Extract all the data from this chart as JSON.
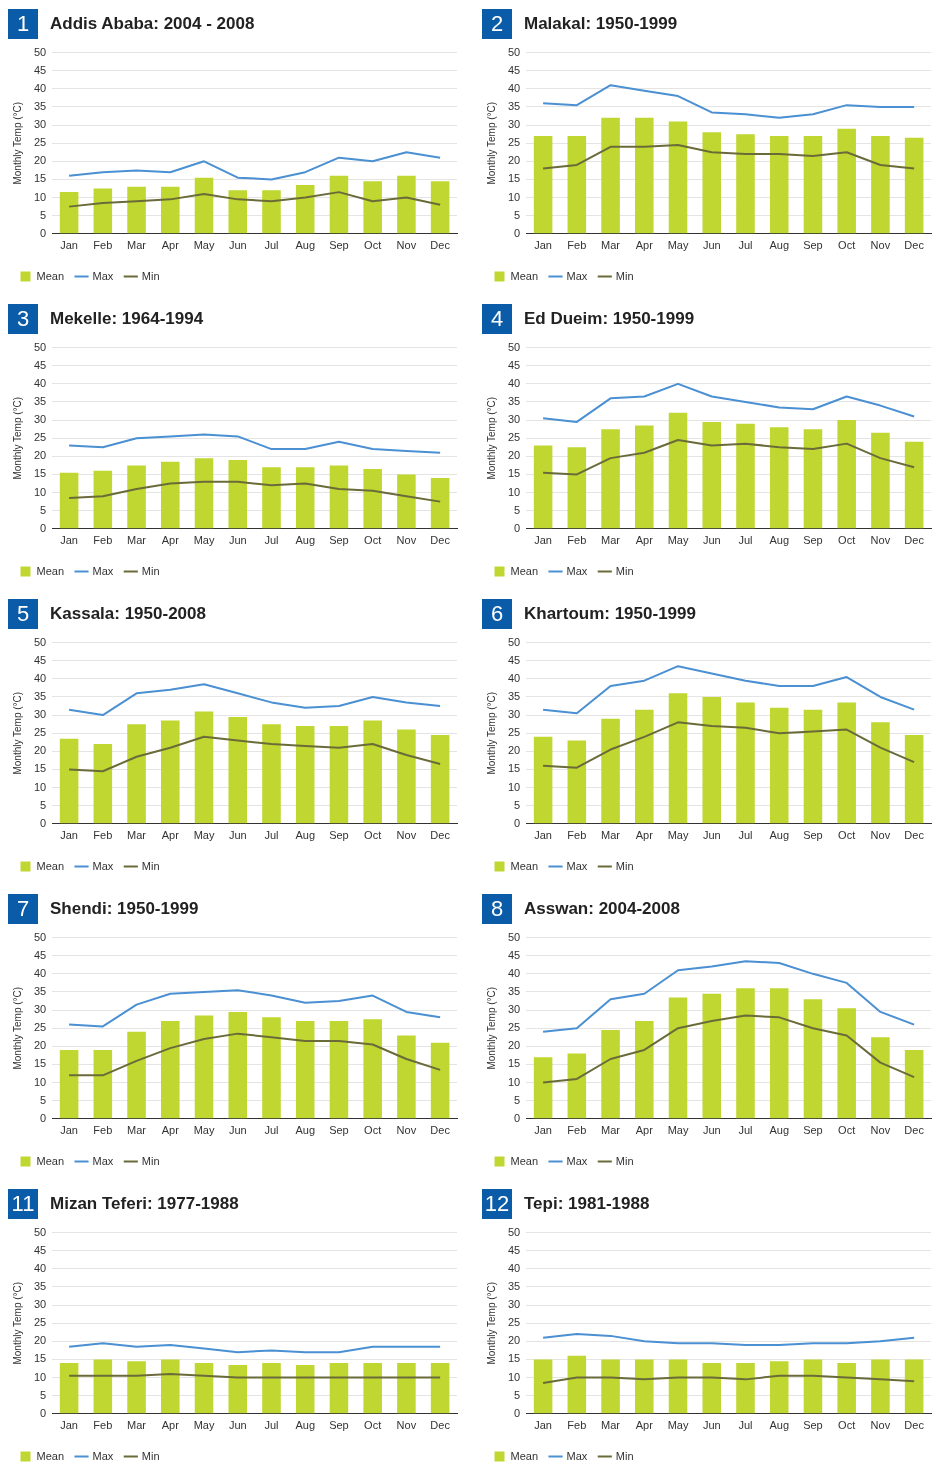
{
  "chart_data": [
    {
      "type": "bar",
      "annotations": [
        "1"
      ],
      "title": "Addis Ababa: 2004 - 2008",
      "ylabel": "Monthly Temp (°C)",
      "categories": [
        "Jan",
        "Feb",
        "Mar",
        "Apr",
        "May",
        "Jun",
        "Jul",
        "Aug",
        "Sep",
        "Oct",
        "Nov",
        "Dec"
      ],
      "ylim": [
        0,
        50
      ],
      "yticks": [
        0,
        5,
        10,
        15,
        20,
        25,
        30,
        35,
        40,
        45,
        50
      ],
      "grid": "y",
      "legend": "bottom left",
      "marker": "none",
      "series": [
        {
          "name": "Mean",
          "color": "#bfd730",
          "values": [
            11.5,
            12.5,
            13,
            13,
            15.5,
            12,
            12,
            13.5,
            16,
            14.5,
            16,
            14.5
          ]
        },
        {
          "name": "Max",
          "type": "line",
          "color": "#4a90d2",
          "values": [
            16,
            17,
            17.5,
            17,
            20,
            15.5,
            15,
            17,
            21,
            20,
            22.5,
            21
          ]
        },
        {
          "name": "Min",
          "type": "line",
          "color": "#6b6b3a",
          "values": [
            7.5,
            8.5,
            9,
            9.5,
            11,
            9.5,
            9,
            10,
            11.5,
            9,
            10,
            8
          ]
        }
      ]
    },
    {
      "type": "bar",
      "annotations": [
        "2"
      ],
      "title": "Malakal: 1950-1999",
      "ylabel": "Monthly Temp (°C)",
      "categories": [
        "Jan",
        "Feb",
        "Mar",
        "Apr",
        "May",
        "Jun",
        "Jul",
        "Aug",
        "Sep",
        "Oct",
        "Nov",
        "Dec"
      ],
      "ylim": [
        0,
        50
      ],
      "yticks": [
        0,
        5,
        10,
        15,
        20,
        25,
        30,
        35,
        40,
        45,
        50
      ],
      "grid": "y",
      "legend": "bottom left",
      "marker": "none",
      "series": [
        {
          "name": "Mean",
          "color": "#bfd730",
          "values": [
            27,
            27,
            32,
            32,
            31,
            28,
            27.5,
            27,
            27,
            29,
            27,
            26.5
          ]
        },
        {
          "name": "Max",
          "type": "line",
          "color": "#4a90d2",
          "values": [
            36,
            35.5,
            41,
            39.5,
            38,
            33.5,
            33,
            32,
            33,
            35.5,
            35,
            35
          ]
        },
        {
          "name": "Min",
          "type": "line",
          "color": "#6b6b3a",
          "values": [
            18,
            19,
            24,
            24,
            24.5,
            22.5,
            22,
            22,
            21.5,
            22.5,
            19,
            18
          ]
        }
      ]
    },
    {
      "type": "bar",
      "annotations": [
        "3"
      ],
      "title": "Mekelle: 1964-1994",
      "ylabel": "Monthly Temp (°C)",
      "categories": [
        "Jan",
        "Feb",
        "Mar",
        "Apr",
        "May",
        "Jun",
        "Jul",
        "Aug",
        "Sep",
        "Oct",
        "Nov",
        "Dec"
      ],
      "ylim": [
        0,
        50
      ],
      "yticks": [
        0,
        5,
        10,
        15,
        20,
        25,
        30,
        35,
        40,
        45,
        50
      ],
      "grid": "y",
      "legend": "bottom left",
      "marker": "none",
      "series": [
        {
          "name": "Mean",
          "color": "#bfd730",
          "values": [
            15.5,
            16,
            17.5,
            18.5,
            19.5,
            19,
            17,
            17,
            17.5,
            16.5,
            15,
            14
          ]
        },
        {
          "name": "Max",
          "type": "line",
          "color": "#4a90d2",
          "values": [
            23,
            22.5,
            25,
            25.5,
            26,
            25.5,
            22,
            22,
            24,
            22,
            21.5,
            21
          ]
        },
        {
          "name": "Min",
          "type": "line",
          "color": "#6b6b3a",
          "values": [
            8.5,
            9,
            11,
            12.5,
            13,
            13,
            12,
            12.5,
            11,
            10.5,
            9,
            7.5
          ]
        }
      ]
    },
    {
      "type": "bar",
      "annotations": [
        "4"
      ],
      "title": "Ed Dueim: 1950-1999",
      "ylabel": "Monthly Temp (°C)",
      "categories": [
        "Jan",
        "Feb",
        "Mar",
        "Apr",
        "May",
        "Jun",
        "Jul",
        "Aug",
        "Sep",
        "Oct",
        "Nov",
        "Dec"
      ],
      "ylim": [
        0,
        50
      ],
      "yticks": [
        0,
        5,
        10,
        15,
        20,
        25,
        30,
        35,
        40,
        45,
        50
      ],
      "grid": "y",
      "legend": "bottom left",
      "marker": "none",
      "series": [
        {
          "name": "Mean",
          "color": "#bfd730",
          "values": [
            23,
            22.5,
            27.5,
            28.5,
            32,
            29.5,
            29,
            28,
            27.5,
            30,
            26.5,
            24
          ]
        },
        {
          "name": "Max",
          "type": "line",
          "color": "#4a90d2",
          "values": [
            30.5,
            29.5,
            36,
            36.5,
            40,
            36.5,
            35,
            33.5,
            33,
            36.5,
            34,
            31
          ]
        },
        {
          "name": "Min",
          "type": "line",
          "color": "#6b6b3a",
          "values": [
            15.5,
            15,
            19.5,
            21,
            24.5,
            23,
            23.5,
            22.5,
            22,
            23.5,
            19.5,
            17
          ]
        }
      ]
    },
    {
      "type": "bar",
      "annotations": [
        "5"
      ],
      "title": "Kassala: 1950-2008",
      "ylabel": "Monthly Temp (°C)",
      "categories": [
        "Jan",
        "Feb",
        "Mar",
        "Apr",
        "May",
        "Jun",
        "Jul",
        "Aug",
        "Sep",
        "Oct",
        "Nov",
        "Dec"
      ],
      "ylim": [
        0,
        50
      ],
      "yticks": [
        0,
        5,
        10,
        15,
        20,
        25,
        30,
        35,
        40,
        45,
        50
      ],
      "grid": "y",
      "legend": "bottom left",
      "marker": "none",
      "series": [
        {
          "name": "Mean",
          "color": "#bfd730",
          "values": [
            23.5,
            22,
            27.5,
            28.5,
            31,
            29.5,
            27.5,
            27,
            27,
            28.5,
            26,
            24.5
          ]
        },
        {
          "name": "Max",
          "type": "line",
          "color": "#4a90d2",
          "values": [
            31.5,
            30,
            36,
            37,
            38.5,
            36,
            33.5,
            32,
            32.5,
            35,
            33.5,
            32.5
          ]
        },
        {
          "name": "Min",
          "type": "line",
          "color": "#6b6b3a",
          "values": [
            15,
            14.5,
            18.5,
            21,
            24,
            23,
            22,
            21.5,
            21,
            22,
            19,
            16.5
          ]
        }
      ]
    },
    {
      "type": "bar",
      "annotations": [
        "6"
      ],
      "title": "Khartoum: 1950-1999",
      "ylabel": "Monthly Temp (°C)",
      "categories": [
        "Jan",
        "Feb",
        "Mar",
        "Apr",
        "May",
        "Jun",
        "Jul",
        "Aug",
        "Sep",
        "Oct",
        "Nov",
        "Dec"
      ],
      "ylim": [
        0,
        50
      ],
      "yticks": [
        0,
        5,
        10,
        15,
        20,
        25,
        30,
        35,
        40,
        45,
        50
      ],
      "grid": "y",
      "legend": "bottom left",
      "marker": "none",
      "series": [
        {
          "name": "Mean",
          "color": "#bfd730",
          "values": [
            24,
            23,
            29,
            31.5,
            36,
            35,
            33.5,
            32,
            31.5,
            33.5,
            28,
            24.5
          ]
        },
        {
          "name": "Max",
          "type": "line",
          "color": "#4a90d2",
          "values": [
            31.5,
            30.5,
            38,
            39.5,
            43.5,
            41.5,
            39.5,
            38,
            38,
            40.5,
            35,
            31.5
          ]
        },
        {
          "name": "Min",
          "type": "line",
          "color": "#6b6b3a",
          "values": [
            16,
            15.5,
            20.5,
            24,
            28,
            27,
            26.5,
            25,
            25.5,
            26,
            21,
            17
          ]
        }
      ]
    },
    {
      "type": "bar",
      "annotations": [
        "7"
      ],
      "title": "Shendi: 1950-1999",
      "ylabel": "Monthly Temp (°C)",
      "categories": [
        "Jan",
        "Feb",
        "Mar",
        "Apr",
        "May",
        "Jun",
        "Jul",
        "Aug",
        "Sep",
        "Oct",
        "Nov",
        "Dec"
      ],
      "ylim": [
        0,
        50
      ],
      "yticks": [
        0,
        5,
        10,
        15,
        20,
        25,
        30,
        35,
        40,
        45,
        50
      ],
      "grid": "y",
      "legend": "bottom left",
      "marker": "none",
      "series": [
        {
          "name": "Mean",
          "color": "#bfd730",
          "values": [
            19,
            19,
            24,
            27,
            28.5,
            29.5,
            28,
            27,
            27,
            27.5,
            23,
            21
          ]
        },
        {
          "name": "Max",
          "type": "line",
          "color": "#4a90d2",
          "values": [
            26,
            25.5,
            31.5,
            34.5,
            35,
            35.5,
            34,
            32,
            32.5,
            34,
            29.5,
            28
          ]
        },
        {
          "name": "Min",
          "type": "line",
          "color": "#6b6b3a",
          "values": [
            12,
            12,
            16,
            19.5,
            22,
            23.5,
            22.5,
            21.5,
            21.5,
            20.5,
            16.5,
            13.5
          ]
        }
      ]
    },
    {
      "type": "bar",
      "annotations": [
        "8"
      ],
      "title": "Asswan: 2004-2008",
      "ylabel": "Monthly Temp (°C)",
      "categories": [
        "Jan",
        "Feb",
        "Mar",
        "Apr",
        "May",
        "Jun",
        "Jul",
        "Aug",
        "Sep",
        "Oct",
        "Nov",
        "Dec"
      ],
      "ylim": [
        0,
        50
      ],
      "yticks": [
        0,
        5,
        10,
        15,
        20,
        25,
        30,
        35,
        40,
        45,
        50
      ],
      "grid": "y",
      "legend": "bottom left",
      "marker": "none",
      "series": [
        {
          "name": "Mean",
          "color": "#bfd730",
          "values": [
            17,
            18,
            24.5,
            27,
            33.5,
            34.5,
            36,
            36,
            33,
            30.5,
            22.5,
            19
          ]
        },
        {
          "name": "Max",
          "type": "line",
          "color": "#4a90d2",
          "values": [
            24,
            25,
            33,
            34.5,
            41,
            42,
            43.5,
            43,
            40,
            37.5,
            29.5,
            26
          ]
        },
        {
          "name": "Min",
          "type": "line",
          "color": "#6b6b3a",
          "values": [
            10,
            11,
            16.5,
            19,
            25,
            27,
            28.5,
            28,
            25,
            23,
            15.5,
            11.5
          ]
        }
      ]
    },
    {
      "type": "bar",
      "annotations": [
        "11"
      ],
      "title": "Mizan Teferi: 1977-1988",
      "ylabel": "Monthly Temp (°C)",
      "categories": [
        "Jan",
        "Feb",
        "Mar",
        "Apr",
        "May",
        "Jun",
        "Jul",
        "Aug",
        "Sep",
        "Oct",
        "Nov",
        "Dec"
      ],
      "ylim": [
        0,
        50
      ],
      "yticks": [
        0,
        5,
        10,
        15,
        20,
        25,
        30,
        35,
        40,
        45,
        50
      ],
      "grid": "y",
      "legend": "bottom left",
      "marker": "none",
      "series": [
        {
          "name": "Mean",
          "color": "#bfd730",
          "values": [
            14,
            15,
            14.5,
            15,
            14,
            13.5,
            14,
            13.5,
            14,
            14,
            14,
            14
          ]
        },
        {
          "name": "Max",
          "type": "line",
          "color": "#4a90d2",
          "values": [
            18.5,
            19.5,
            18.5,
            19,
            18,
            17,
            17.5,
            17,
            17,
            18.5,
            18.5,
            18.5
          ]
        },
        {
          "name": "Min",
          "type": "line",
          "color": "#6b6b3a",
          "values": [
            10.5,
            10.5,
            10.5,
            11,
            10.5,
            10,
            10,
            10,
            10,
            10,
            10,
            10
          ]
        }
      ]
    },
    {
      "type": "bar",
      "annotations": [
        "12"
      ],
      "title": "Tepi: 1981-1988",
      "ylabel": "Monthly Temp (°C)",
      "categories": [
        "Jan",
        "Feb",
        "Mar",
        "Apr",
        "May",
        "Jun",
        "Jul",
        "Aug",
        "Sep",
        "Oct",
        "Nov",
        "Dec"
      ],
      "ylim": [
        0,
        50
      ],
      "yticks": [
        0,
        5,
        10,
        15,
        20,
        25,
        30,
        35,
        40,
        45,
        50
      ],
      "grid": "y",
      "legend": "bottom left",
      "marker": "none",
      "series": [
        {
          "name": "Mean",
          "color": "#bfd730",
          "values": [
            15,
            16,
            15,
            15,
            15,
            14,
            14,
            14.5,
            15,
            14,
            15,
            15
          ]
        },
        {
          "name": "Max",
          "type": "line",
          "color": "#4a90d2",
          "values": [
            21,
            22,
            21.5,
            20,
            19.5,
            19.5,
            19,
            19,
            19.5,
            19.5,
            20,
            21
          ]
        },
        {
          "name": "Min",
          "type": "line",
          "color": "#6b6b3a",
          "values": [
            8.5,
            10,
            10,
            9.5,
            10,
            10,
            9.5,
            10.5,
            10.5,
            10,
            9.5,
            9
          ]
        }
      ]
    }
  ]
}
